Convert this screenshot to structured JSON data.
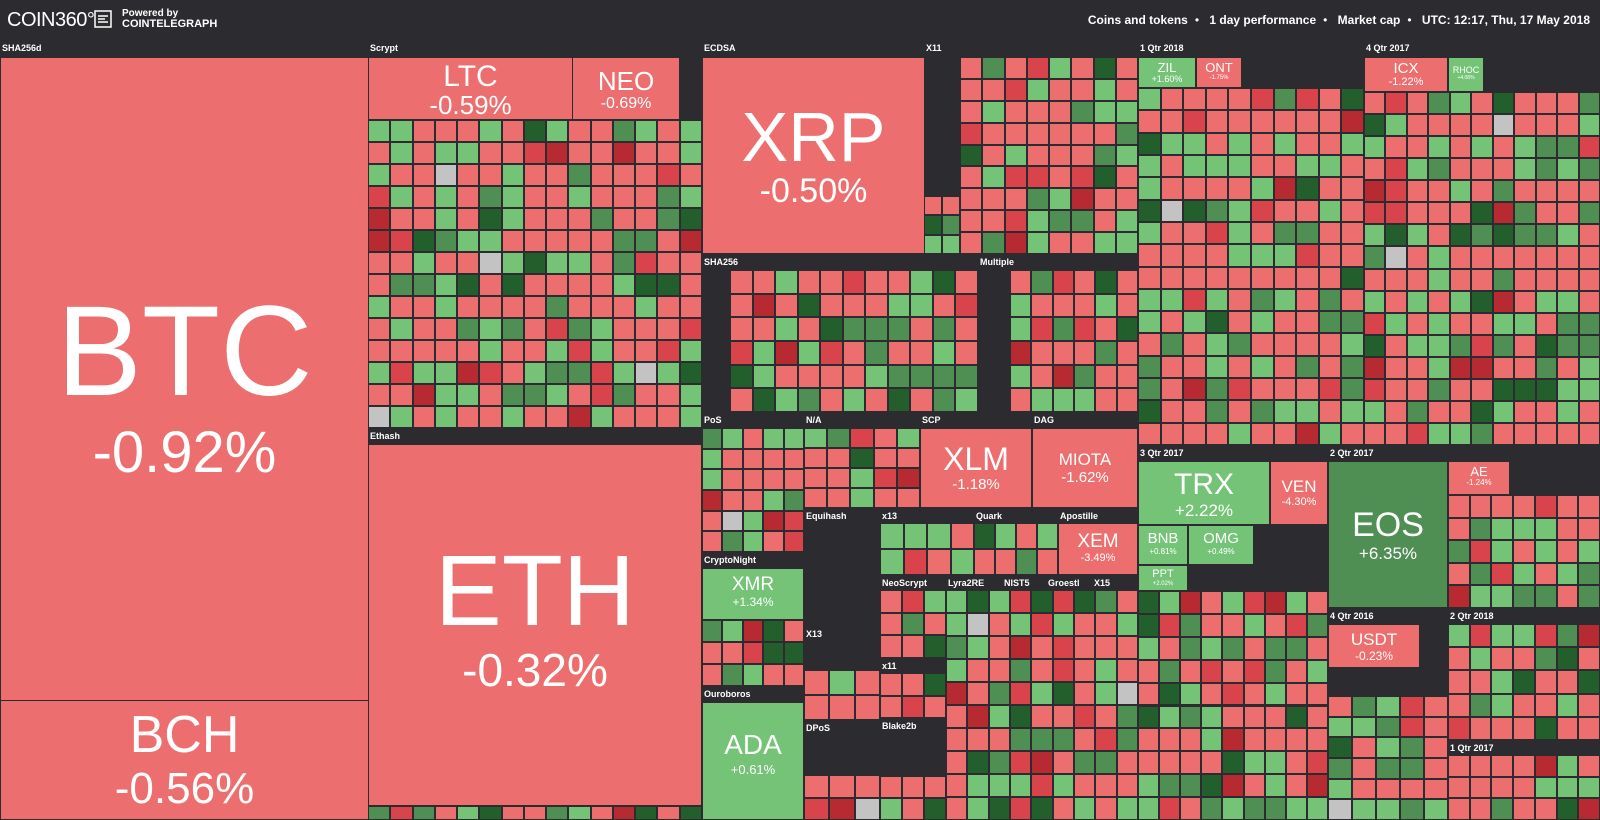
{
  "header": {
    "logo": "COIN360°",
    "powered_by": "Powered by",
    "brand": "COINTELEGRAPH",
    "breadcrumbs": [
      "Coins and tokens",
      "1 day performance",
      "Market cap",
      "UTC: 12:17, Thu, 17 May 2018"
    ]
  },
  "colors": {
    "red": "#ed6e6e",
    "dark_red": "#b82a31",
    "mid_red": "#d9434b",
    "green": "#74c377",
    "mid_green": "#4f8f53",
    "dark_green": "#225f2c",
    "grey": "#c3c3c3",
    "bg": "#2c2b2f"
  },
  "groups": [
    {
      "label": "SHA256d"
    },
    {
      "label": "Scrypt"
    },
    {
      "label": "ECDSA"
    },
    {
      "label": "X11"
    },
    {
      "label": "1 Qtr 2018"
    },
    {
      "label": "4 Qtr 2017"
    },
    {
      "label": "SHA256"
    },
    {
      "label": "Multiple"
    },
    {
      "label": "Ethash"
    },
    {
      "label": "PoS"
    },
    {
      "label": "N/A"
    },
    {
      "label": "SCP"
    },
    {
      "label": "DAG"
    },
    {
      "label": "3 Qtr 2017"
    },
    {
      "label": "2 Qtr 2017"
    },
    {
      "label": "Equihash"
    },
    {
      "label": "x13"
    },
    {
      "label": "Quark"
    },
    {
      "label": "Apostille"
    },
    {
      "label": "CryptoNight"
    },
    {
      "label": "NeoScrypt"
    },
    {
      "label": "Lyra2RE"
    },
    {
      "label": "NIST5"
    },
    {
      "label": "Groestl"
    },
    {
      "label": "X15"
    },
    {
      "label": "X13"
    },
    {
      "label": "x11"
    },
    {
      "label": "4 Qtr 2016"
    },
    {
      "label": "2 Qtr 2018"
    },
    {
      "label": "Ouroboros"
    },
    {
      "label": "DPoS"
    },
    {
      "label": "Blake2b"
    },
    {
      "label": "1 Qtr 2017"
    }
  ],
  "coins": [
    {
      "symbol": "BTC",
      "change": "-0.92%",
      "color": "red"
    },
    {
      "symbol": "BCH",
      "change": "-0.56%",
      "color": "red"
    },
    {
      "symbol": "LTC",
      "change": "-0.59%",
      "color": "red"
    },
    {
      "symbol": "NEO",
      "change": "-0.69%",
      "color": "red"
    },
    {
      "symbol": "XRP",
      "change": "-0.50%",
      "color": "red"
    },
    {
      "symbol": "ETH",
      "change": "-0.32%",
      "color": "red"
    },
    {
      "symbol": "ZIL",
      "change": "+1.60%",
      "color": "green"
    },
    {
      "symbol": "ONT",
      "change": "-1.75%",
      "color": "red"
    },
    {
      "symbol": "ICX",
      "change": "-1.22%",
      "color": "red"
    },
    {
      "symbol": "RHOC",
      "change": "+4.08%",
      "color": "green"
    },
    {
      "symbol": "XLM",
      "change": "-1.18%",
      "color": "red"
    },
    {
      "symbol": "MIOTA",
      "change": "-1.62%",
      "color": "red"
    },
    {
      "symbol": "TRX",
      "change": "+2.22%",
      "color": "green"
    },
    {
      "symbol": "VEN",
      "change": "-4.30%",
      "color": "red"
    },
    {
      "symbol": "EOS",
      "change": "+6.35%",
      "color": "mid_green"
    },
    {
      "symbol": "AE",
      "change": "-1.24%",
      "color": "red"
    },
    {
      "symbol": "XMR",
      "change": "+1.34%",
      "color": "green"
    },
    {
      "symbol": "XEM",
      "change": "-3.49%",
      "color": "red"
    },
    {
      "symbol": "BNB",
      "change": "+0.81%",
      "color": "green"
    },
    {
      "symbol": "OMG",
      "change": "+0.49%",
      "color": "green"
    },
    {
      "symbol": "PPT",
      "change": "+2.02%",
      "color": "green"
    },
    {
      "symbol": "USDT",
      "change": "-0.23%",
      "color": "red"
    },
    {
      "symbol": "ADA",
      "change": "+0.61%",
      "color": "green"
    }
  ]
}
